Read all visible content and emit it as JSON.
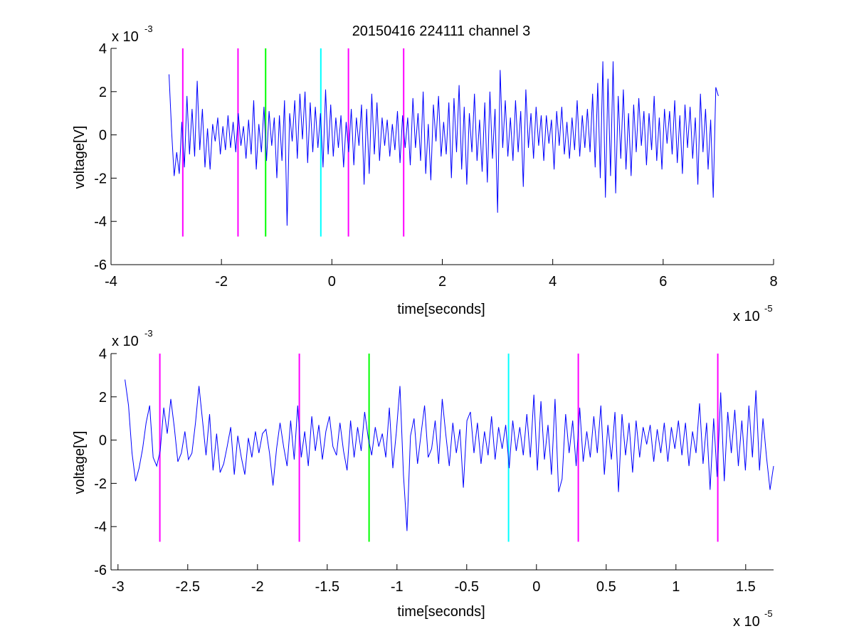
{
  "colors": {
    "signal": "#0000ff",
    "magenta_marker": "#ff00ff",
    "green_marker": "#00ff00",
    "cyan_marker": "#00ffff",
    "axes": "#000000",
    "background": "#ffffff"
  },
  "chart_data": [
    {
      "type": "line",
      "title": "20150416 224111 channel 3",
      "xlabel": "time[seconds]",
      "ylabel": "voltage[V]",
      "x_exponent_label": "x 10",
      "x_exponent": "-5",
      "y_exponent_label": "x 10",
      "y_exponent": "-3",
      "xlim": [
        -4,
        8
      ],
      "ylim": [
        -6,
        4
      ],
      "xticks": [
        -4,
        -2,
        0,
        2,
        4,
        6,
        8
      ],
      "xtick_labels": [
        "-4",
        "-2",
        "0",
        "2",
        "4",
        "6",
        "8"
      ],
      "yticks": [
        -6,
        -4,
        -2,
        0,
        2,
        4
      ],
      "ytick_labels": [
        "-6",
        "-4",
        "-2",
        "0",
        "2",
        "4"
      ],
      "grid": false,
      "series": [
        {
          "color": "#0000ff",
          "x_start": -2.95,
          "x_end": 7.0,
          "values": [
            2.8,
            0.2,
            -1.9,
            -0.8,
            -1.8,
            0.6,
            -1.5,
            1.8,
            -0.9,
            1.2,
            -1.0,
            2.5,
            -0.7,
            1.2,
            -1.5,
            0.3,
            -1.6,
            0.5,
            -0.3,
            0.8,
            -0.9,
            0.4,
            -0.7,
            0.9,
            -0.6,
            0.6,
            -0.8,
            1.0,
            -0.5,
            0.4,
            -1.1,
            0.7,
            -0.9,
            1.6,
            -1.6,
            0.5,
            -0.8,
            1.3,
            -1.2,
            1.1,
            -0.5,
            0.8,
            -2.0,
            0.9,
            -1.2,
            1.6,
            -4.2,
            1.0,
            -0.3,
            1.6,
            -1.1,
            1.9,
            -0.2,
            2.0,
            -1.3,
            1.5,
            -0.8,
            1.3,
            -0.6,
            1.0,
            -1.5,
            2.1,
            -0.9,
            1.4,
            -1.0,
            0.8,
            -0.6,
            0.9,
            -1.5,
            0.6,
            -0.8,
            1.2,
            -1.4,
            0.8,
            -0.5,
            1.4,
            -2.3,
            1.2,
            -1.8,
            1.9,
            -0.9,
            1.5,
            -1.2,
            0.8,
            -0.5,
            0.7,
            -1.0,
            0.5,
            -0.7,
            1.1,
            -1.3,
            0.9,
            -0.6,
            0.8,
            -1.4,
            1.7,
            -0.6,
            1.0,
            -1.2,
            2.0,
            -1.8,
            0.5,
            -2.1,
            1.4,
            -0.3,
            1.8,
            -1.0,
            0.6,
            -0.9,
            1.5,
            -2.0,
            1.7,
            -0.8,
            2.3,
            -1.6,
            1.3,
            -2.3,
            1.0,
            -0.8,
            1.9,
            -1.2,
            0.7,
            -1.7,
            1.5,
            -2.2,
            2.0,
            -1.1,
            1.2,
            -3.6,
            3.0,
            -0.6,
            1.6,
            -1.0,
            0.8,
            -1.2,
            1.6,
            -0.8,
            1.1,
            -2.4,
            2.1,
            -0.6,
            1.0,
            -1.1,
            1.3,
            -0.5,
            0.9,
            -1.2,
            0.9,
            -0.4,
            0.7,
            -1.6,
            1.1,
            -0.5,
            1.3,
            -0.9,
            0.6,
            -1.1,
            0.8,
            -0.7,
            1.6,
            -1.0,
            0.9,
            -0.6,
            1.2,
            -0.8,
            1.9,
            -1.5,
            2.4,
            -2.0,
            3.4,
            -2.9,
            2.6,
            -1.9,
            3.4,
            -2.7,
            1.8,
            -1.1,
            2.1,
            -1.6,
            1.0,
            -1.9,
            1.4,
            -0.8,
            1.7,
            -0.5,
            1.1,
            -1.4,
            1.0,
            -0.7,
            1.8,
            -1.2,
            0.8,
            -1.6,
            1.2,
            -0.4,
            1.1,
            -0.9,
            1.6,
            -1.3,
            0.9,
            -1.8,
            1.4,
            -0.6,
            1.3,
            -1.1,
            0.8,
            -2.3,
            1.9,
            -0.8,
            1.2,
            -1.6,
            0.7,
            -2.9,
            2.2,
            1.8
          ]
        }
      ],
      "markers": [
        {
          "x": -2.7,
          "color": "#ff00ff",
          "y_from": -4.7,
          "y_to": 4.0
        },
        {
          "x": -1.7,
          "color": "#ff00ff",
          "y_from": -4.7,
          "y_to": 4.0
        },
        {
          "x": -1.2,
          "color": "#00ff00",
          "y_from": -4.7,
          "y_to": 4.0
        },
        {
          "x": -0.2,
          "color": "#00ffff",
          "y_from": -4.7,
          "y_to": 4.0
        },
        {
          "x": 0.3,
          "color": "#ff00ff",
          "y_from": -4.7,
          "y_to": 4.0
        },
        {
          "x": 1.3,
          "color": "#ff00ff",
          "y_from": -4.7,
          "y_to": 4.0
        }
      ]
    },
    {
      "type": "line",
      "title": "",
      "xlabel": "time[seconds]",
      "ylabel": "voltage[V]",
      "x_exponent_label": "x 10",
      "x_exponent": "-5",
      "y_exponent_label": "x 10",
      "y_exponent": "-3",
      "xlim": [
        -3.05,
        1.7
      ],
      "ylim": [
        -6,
        4
      ],
      "xticks": [
        -3,
        -2.5,
        -2,
        -1.5,
        -1,
        -0.5,
        0,
        0.5,
        1,
        1.5
      ],
      "xtick_labels": [
        "-3",
        "-2.5",
        "-2",
        "-1.5",
        "-1",
        "-0.5",
        "0",
        "0.5",
        "1",
        "1.5"
      ],
      "yticks": [
        -6,
        -4,
        -2,
        0,
        2,
        4
      ],
      "ytick_labels": [
        "-6",
        "-4",
        "-2",
        "0",
        "2",
        "4"
      ],
      "grid": false,
      "series": [
        {
          "color": "#0000ff",
          "x_start": -2.95,
          "x_end": 1.7,
          "values": [
            2.8,
            1.6,
            -0.6,
            -1.9,
            -1.3,
            -0.4,
            0.8,
            1.6,
            -0.8,
            -1.2,
            -0.5,
            1.5,
            0.3,
            1.9,
            0.6,
            -1.0,
            -0.6,
            0.4,
            -0.9,
            -0.6,
            0.8,
            2.5,
            0.9,
            -0.7,
            1.2,
            -1.4,
            0.3,
            -1.5,
            -1.1,
            -0.3,
            0.6,
            -1.6,
            0.2,
            -0.8,
            -1.6,
            0.1,
            -0.8,
            0.4,
            -0.6,
            0.3,
            0.5,
            -0.6,
            -2.1,
            -0.4,
            0.8,
            -0.3,
            -1.2,
            0.9,
            -0.9,
            1.6,
            -0.8,
            0.4,
            -1.2,
            1.1,
            -0.5,
            0.7,
            -0.9,
            0.4,
            1.1,
            -0.3,
            -0.7,
            0.8,
            -0.5,
            -1.4,
            0.9,
            -0.8,
            0.6,
            -0.5,
            1.3,
            0.1,
            -0.7,
            0.6,
            -0.3,
            0.3,
            -0.8,
            1.5,
            -1.3,
            0.4,
            2.5,
            -1.6,
            -4.2,
            0.2,
            1.0,
            -1.1,
            0.3,
            1.6,
            -0.8,
            -0.4,
            0.9,
            -1.1,
            1.9,
            0.3,
            -1.2,
            0.8,
            -0.6,
            0.5,
            -2.2,
            0.9,
            1.3,
            -0.6,
            0.8,
            -1.1,
            0.4,
            -0.7,
            1.1,
            -0.9,
            0.6,
            -0.4,
            0.7,
            -1.3,
            0.9,
            -0.5,
            0.6,
            -0.7,
            1.2,
            -0.8,
            2.1,
            -1.4,
            1.8,
            -0.9,
            0.7,
            -1.6,
            1.9,
            -2.4,
            -1.8,
            1.2,
            -0.6,
            0.9,
            -1.2,
            1.5,
            -1.0,
            0.4,
            -0.8,
            1.1,
            -0.6,
            1.6,
            -1.6,
            0.7,
            -0.9,
            1.3,
            -2.4,
            1.2,
            -0.7,
            0.8,
            -1.5,
            0.9,
            -0.8,
            0.6,
            -0.2,
            0.7,
            -1.0,
            0.5,
            -0.6,
            0.8,
            -1.0,
            0.6,
            -0.4,
            0.9,
            -0.7,
            0.8,
            -1.2,
            0.4,
            -0.6,
            1.7,
            -1.1,
            0.8,
            -2.3,
            1.0,
            -1.7,
            2.2,
            -1.9,
            1.3,
            -0.6,
            1.4,
            -1.2,
            0.9,
            -1.4,
            1.6,
            -0.8,
            2.3,
            -1.4,
            1.0,
            -0.8,
            -2.3,
            -1.2
          ]
        }
      ],
      "markers": [
        {
          "x": -2.7,
          "color": "#ff00ff",
          "y_from": -4.7,
          "y_to": 4.0
        },
        {
          "x": -1.7,
          "color": "#ff00ff",
          "y_from": -4.7,
          "y_to": 4.0
        },
        {
          "x": -1.2,
          "color": "#00ff00",
          "y_from": -4.7,
          "y_to": 4.0
        },
        {
          "x": -0.2,
          "color": "#00ffff",
          "y_from": -4.7,
          "y_to": 4.0
        },
        {
          "x": 0.3,
          "color": "#ff00ff",
          "y_from": -4.7,
          "y_to": 4.0
        },
        {
          "x": 1.3,
          "color": "#ff00ff",
          "y_from": -4.7,
          "y_to": 4.0
        }
      ]
    }
  ]
}
